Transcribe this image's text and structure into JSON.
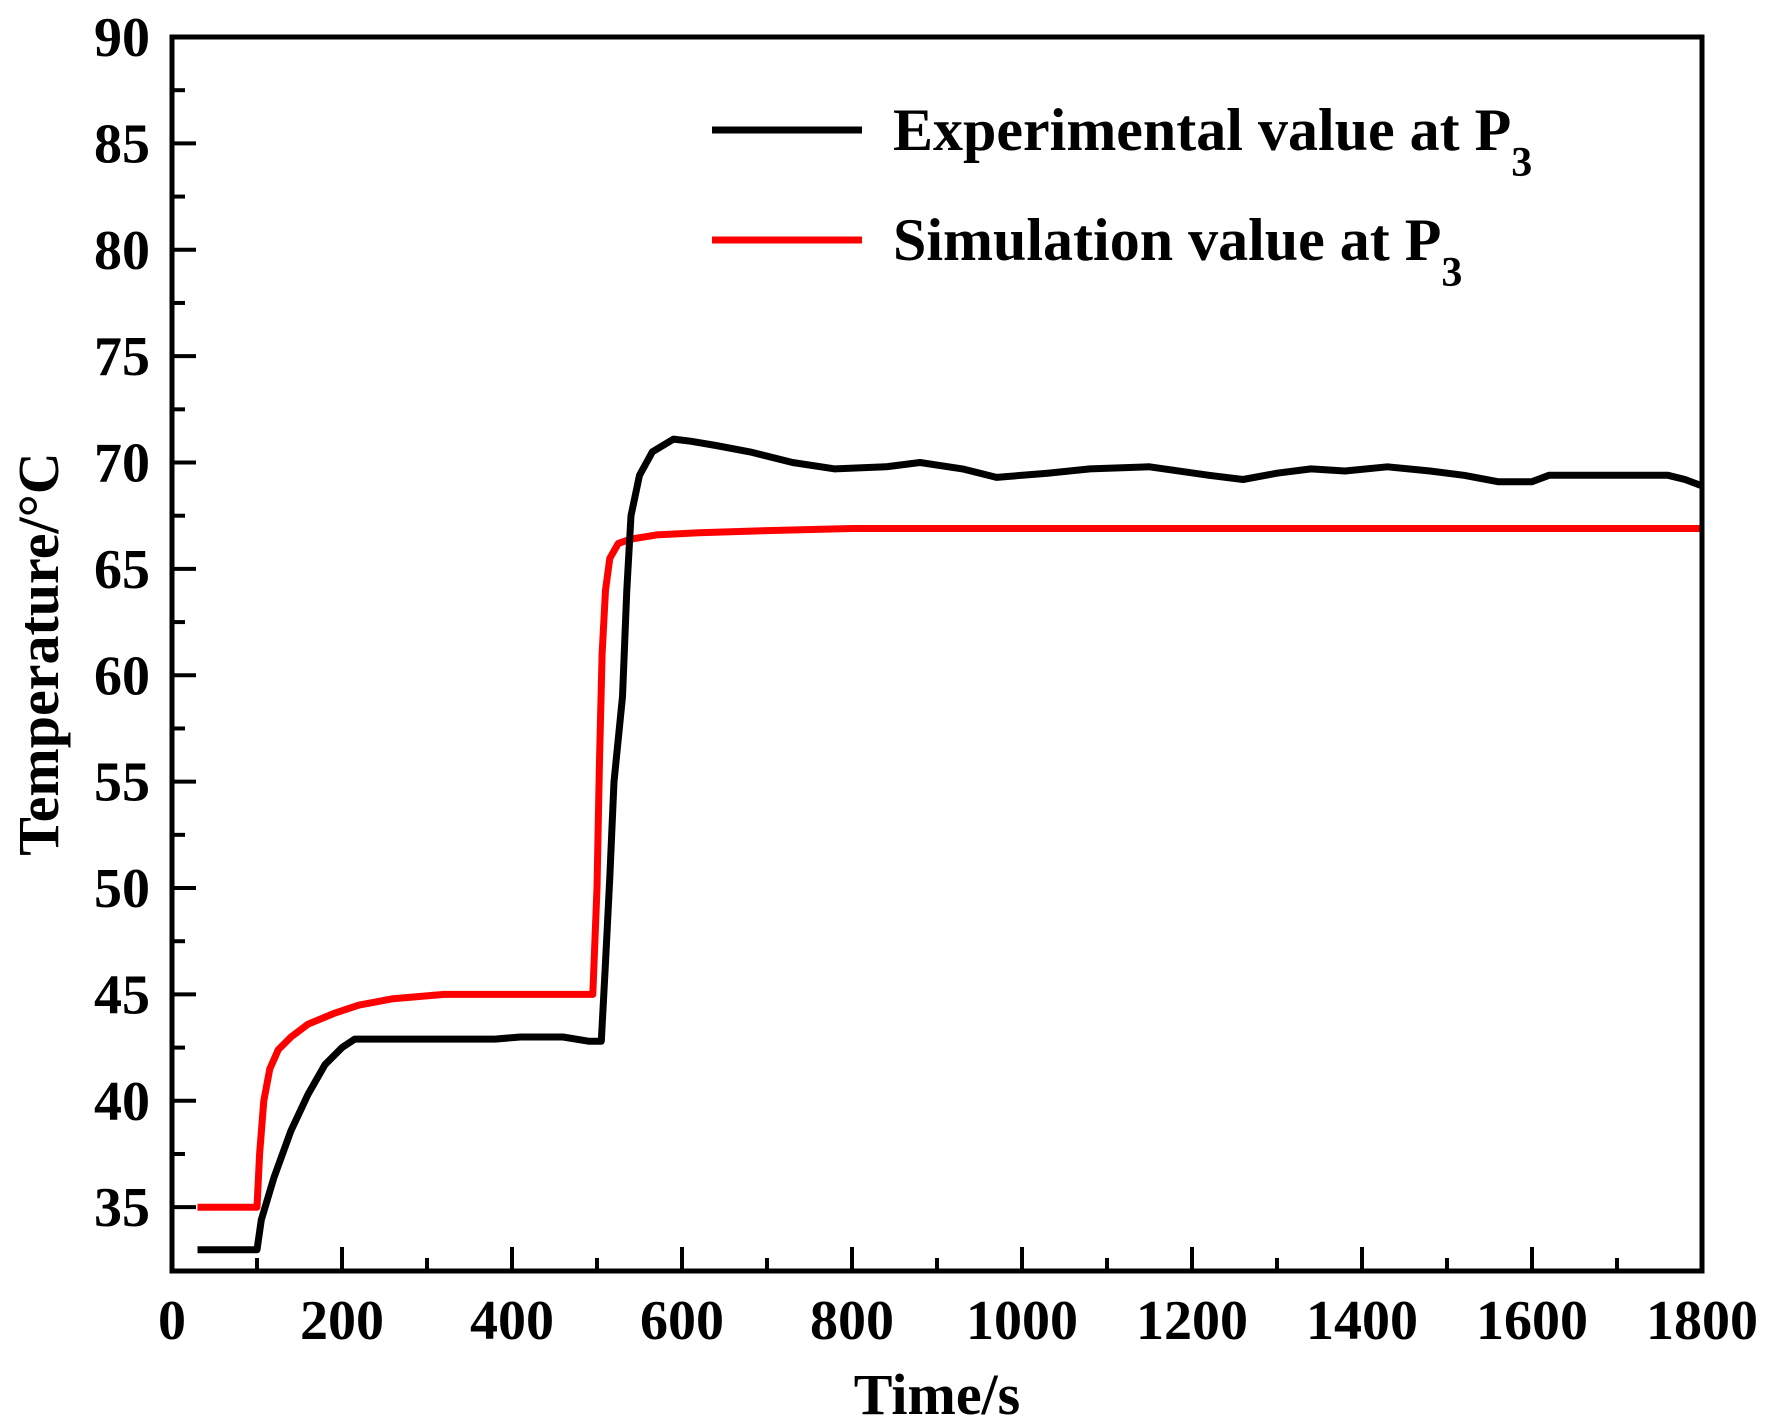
{
  "chart_data": {
    "type": "line",
    "title": "",
    "xlabel": "Time/s",
    "ylabel": "Temperature/°C",
    "xlim": [
      0,
      1800
    ],
    "ylim": [
      32,
      90
    ],
    "xticks": [
      0,
      200,
      400,
      600,
      800,
      1000,
      1200,
      1400,
      1600,
      1800
    ],
    "yticks": [
      35,
      40,
      45,
      50,
      55,
      60,
      65,
      70,
      75,
      80,
      85,
      90
    ],
    "grid": false,
    "legend_position": "top-right",
    "series": [
      {
        "name": "Experimental value at P",
        "subscript": "3",
        "color": "#000000",
        "x": [
          30,
          100,
          105,
          120,
          140,
          160,
          180,
          200,
          215,
          240,
          300,
          380,
          410,
          460,
          490,
          505,
          510,
          515,
          520,
          530,
          535,
          540,
          550,
          565,
          590,
          610,
          640,
          680,
          730,
          780,
          840,
          880,
          930,
          970,
          1030,
          1080,
          1150,
          1220,
          1260,
          1300,
          1340,
          1380,
          1430,
          1480,
          1520,
          1560,
          1600,
          1620,
          1640,
          1700,
          1760,
          1780,
          1800
        ],
        "y": [
          33.0,
          33.0,
          34.4,
          36.4,
          38.6,
          40.3,
          41.7,
          42.5,
          42.9,
          42.9,
          42.9,
          42.9,
          43.0,
          43.0,
          42.8,
          42.8,
          46.5,
          50.5,
          55.0,
          59.0,
          64.0,
          67.5,
          69.4,
          70.5,
          71.1,
          71.0,
          70.8,
          70.5,
          70.0,
          69.7,
          69.8,
          70.0,
          69.7,
          69.3,
          69.5,
          69.7,
          69.8,
          69.4,
          69.2,
          69.5,
          69.7,
          69.6,
          69.8,
          69.6,
          69.4,
          69.1,
          69.1,
          69.4,
          69.4,
          69.4,
          69.4,
          69.2,
          68.9
        ]
      },
      {
        "name": "Simulation value at P",
        "subscript": "3",
        "color": "#ff0000",
        "x": [
          30,
          100,
          103,
          108,
          115,
          125,
          140,
          160,
          190,
          220,
          260,
          320,
          400,
          450,
          495,
          500,
          503,
          506,
          510,
          515,
          525,
          540,
          570,
          620,
          700,
          800,
          900,
          1000,
          1200,
          1400,
          1600,
          1800
        ],
        "y": [
          35.0,
          35.0,
          37.5,
          40.0,
          41.5,
          42.4,
          43.0,
          43.6,
          44.1,
          44.5,
          44.8,
          45.0,
          45.0,
          45.0,
          45.0,
          50.0,
          56.0,
          61.0,
          64.0,
          65.5,
          66.2,
          66.4,
          66.6,
          66.7,
          66.8,
          66.9,
          66.9,
          66.9,
          66.9,
          66.9,
          66.9,
          66.9
        ]
      }
    ]
  }
}
